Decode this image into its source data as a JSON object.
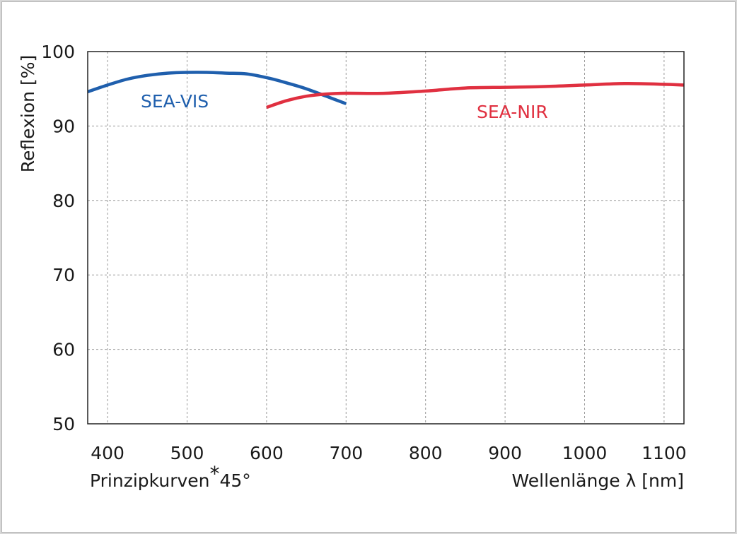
{
  "chart_data": {
    "type": "line",
    "title": "",
    "xlabel": "Wellenlänge λ [nm]",
    "ylabel": "Reflexion [%]",
    "note": "Prinzipkurven*45°",
    "xlim": [
      375,
      1125
    ],
    "ylim": [
      50,
      100
    ],
    "xticks": [
      400,
      500,
      600,
      700,
      800,
      900,
      1000,
      1100
    ],
    "yticks": [
      50,
      60,
      70,
      80,
      90,
      100
    ],
    "grid": true,
    "series": [
      {
        "name": "SEA-VIS",
        "color": "#1f5fad",
        "x": [
          375,
          400,
          425,
          450,
          475,
          500,
          525,
          550,
          575,
          600,
          625,
          650,
          675,
          700
        ],
        "y": [
          94.6,
          95.5,
          96.3,
          96.8,
          97.1,
          97.2,
          97.2,
          97.1,
          97.0,
          96.5,
          95.8,
          95.0,
          94.0,
          93.0
        ]
      },
      {
        "name": "SEA-NIR",
        "color": "#e03040",
        "x": [
          600,
          625,
          650,
          675,
          700,
          750,
          800,
          850,
          900,
          950,
          1000,
          1050,
          1100,
          1125
        ],
        "y": [
          92.5,
          93.4,
          94.0,
          94.3,
          94.4,
          94.4,
          94.7,
          95.1,
          95.2,
          95.3,
          95.5,
          95.7,
          95.6,
          95.5
        ]
      }
    ]
  }
}
